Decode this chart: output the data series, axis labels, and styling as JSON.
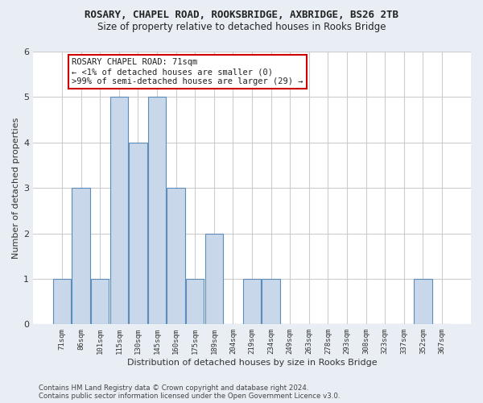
{
  "title1": "ROSARY, CHAPEL ROAD, ROOKSBRIDGE, AXBRIDGE, BS26 2TB",
  "title2": "Size of property relative to detached houses in Rooks Bridge",
  "xlabel": "Distribution of detached houses by size in Rooks Bridge",
  "ylabel": "Number of detached properties",
  "categories": [
    "71sqm",
    "86sqm",
    "101sqm",
    "115sqm",
    "130sqm",
    "145sqm",
    "160sqm",
    "175sqm",
    "189sqm",
    "204sqm",
    "219sqm",
    "234sqm",
    "249sqm",
    "263sqm",
    "278sqm",
    "293sqm",
    "308sqm",
    "323sqm",
    "337sqm",
    "352sqm",
    "367sqm"
  ],
  "values": [
    1,
    3,
    1,
    5,
    4,
    5,
    3,
    1,
    2,
    0,
    1,
    1,
    0,
    0,
    0,
    0,
    0,
    0,
    0,
    1,
    0
  ],
  "bar_color": "#c8d8ea",
  "bar_edge_color": "#5b8db8",
  "annotation_box_text": "ROSARY CHAPEL ROAD: 71sqm\n← <1% of detached houses are smaller (0)\n>99% of semi-detached houses are larger (29) →",
  "annotation_box_color": "#ffffff",
  "annotation_box_edge_color": "#cc0000",
  "ylim": [
    0,
    6
  ],
  "yticks": [
    0,
    1,
    2,
    3,
    4,
    5,
    6
  ],
  "footer1": "Contains HM Land Registry data © Crown copyright and database right 2024.",
  "footer2": "Contains public sector information licensed under the Open Government Licence v3.0.",
  "bg_color": "#e8eef4",
  "plot_bg_color": "#ffffff",
  "grid_color": "#cccccc"
}
